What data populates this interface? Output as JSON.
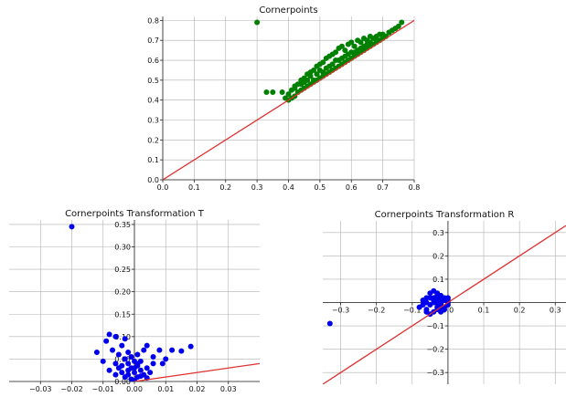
{
  "chart_data": [
    {
      "type": "scatter",
      "title": "Cornerpoints",
      "xlim": [
        0.0,
        0.8
      ],
      "ylim": [
        0.0,
        0.82
      ],
      "xticks": [
        0.0,
        0.1,
        0.2,
        0.3,
        0.4,
        0.5,
        0.6,
        0.7,
        0.8
      ],
      "yticks": [
        0.0,
        0.1,
        0.2,
        0.3,
        0.4,
        0.5,
        0.6,
        0.7,
        0.8
      ],
      "xtick_labels": [
        "0.0",
        "0.1",
        "0.2",
        "0.3",
        "0.4",
        "0.5",
        "0.6",
        "0.7",
        "0.8"
      ],
      "ytick_labels": [
        "0.0",
        "0.1",
        "0.2",
        "0.3",
        "0.4",
        "0.5",
        "0.6",
        "0.7",
        "0.8"
      ],
      "grid": true,
      "point_color": "#008000",
      "line_color": "#e03030",
      "reference_line": [
        [
          0.0,
          0.0
        ],
        [
          0.8,
          0.8
        ]
      ],
      "series": [
        {
          "x": [
            0.3,
            0.33,
            0.35,
            0.38,
            0.39,
            0.4,
            0.4,
            0.41,
            0.41,
            0.42,
            0.42,
            0.43,
            0.43,
            0.44,
            0.44,
            0.45,
            0.45,
            0.46,
            0.46,
            0.47,
            0.47,
            0.48,
            0.48,
            0.49,
            0.49,
            0.5,
            0.5,
            0.51,
            0.51,
            0.52,
            0.52,
            0.53,
            0.53,
            0.54,
            0.54,
            0.55,
            0.55,
            0.56,
            0.56,
            0.57,
            0.57,
            0.58,
            0.58,
            0.59,
            0.59,
            0.6,
            0.6,
            0.61,
            0.61,
            0.62,
            0.62,
            0.63,
            0.63,
            0.64,
            0.64,
            0.65,
            0.65,
            0.66,
            0.66,
            0.67,
            0.67,
            0.68,
            0.68,
            0.69,
            0.69,
            0.7,
            0.7,
            0.71,
            0.72,
            0.73,
            0.74,
            0.75,
            0.76,
            0.45,
            0.47,
            0.5,
            0.52,
            0.55,
            0.58,
            0.62,
            0.65,
            0.68,
            0.7,
            0.72,
            0.48,
            0.53,
            0.57,
            0.6,
            0.63,
            0.66,
            0.42,
            0.44,
            0.46,
            0.49,
            0.51,
            0.54,
            0.56,
            0.59,
            0.61,
            0.64
          ],
          "y": [
            0.79,
            0.44,
            0.44,
            0.44,
            0.41,
            0.4,
            0.43,
            0.41,
            0.45,
            0.42,
            0.46,
            0.44,
            0.48,
            0.45,
            0.5,
            0.46,
            0.51,
            0.47,
            0.53,
            0.48,
            0.54,
            0.49,
            0.55,
            0.5,
            0.57,
            0.51,
            0.58,
            0.52,
            0.59,
            0.53,
            0.61,
            0.54,
            0.62,
            0.55,
            0.63,
            0.56,
            0.64,
            0.57,
            0.66,
            0.58,
            0.67,
            0.59,
            0.65,
            0.6,
            0.68,
            0.61,
            0.69,
            0.62,
            0.67,
            0.63,
            0.7,
            0.64,
            0.69,
            0.65,
            0.71,
            0.66,
            0.7,
            0.67,
            0.72,
            0.68,
            0.71,
            0.69,
            0.72,
            0.7,
            0.73,
            0.71,
            0.73,
            0.72,
            0.74,
            0.75,
            0.76,
            0.77,
            0.79,
            0.49,
            0.52,
            0.55,
            0.56,
            0.6,
            0.62,
            0.65,
            0.68,
            0.7,
            0.72,
            0.74,
            0.5,
            0.57,
            0.61,
            0.64,
            0.66,
            0.69,
            0.47,
            0.48,
            0.5,
            0.53,
            0.54,
            0.58,
            0.6,
            0.63,
            0.64,
            0.67
          ]
        }
      ]
    },
    {
      "type": "scatter",
      "title": "Cornerpoints Transformation T",
      "xlim": [
        -0.04,
        0.04
      ],
      "ylim": [
        0.0,
        0.36
      ],
      "xticks": [
        -0.03,
        -0.02,
        -0.01,
        0.0,
        0.01,
        0.02,
        0.03
      ],
      "yticks": [
        0.0,
        0.05,
        0.1,
        0.15,
        0.2,
        0.25,
        0.3,
        0.35
      ],
      "xtick_labels": [
        "−0.03",
        "−0.02",
        "−0.01",
        "0.00",
        "0.01",
        "0.02",
        "0.03"
      ],
      "ytick_labels": [
        "0.00",
        "0.05",
        "0.10",
        "0.15",
        "0.20",
        "0.25",
        "0.30",
        "0.35"
      ],
      "grid": true,
      "point_color": "#0000ee",
      "line_color": "#e03030",
      "reference_line": [
        [
          0.0,
          0.0
        ],
        [
          0.04,
          0.04
        ]
      ],
      "series": [
        {
          "x": [
            -0.02,
            -0.012,
            -0.01,
            -0.009,
            -0.008,
            -0.007,
            -0.006,
            -0.006,
            -0.005,
            -0.005,
            -0.004,
            -0.004,
            -0.003,
            -0.003,
            -0.003,
            -0.002,
            -0.002,
            -0.002,
            -0.001,
            -0.001,
            -0.001,
            0.0,
            0.0,
            0.0,
            0.001,
            0.001,
            0.001,
            0.002,
            0.002,
            0.003,
            0.003,
            0.004,
            0.004,
            0.005,
            0.006,
            0.008,
            0.01,
            0.012,
            0.015,
            0.018,
            -0.008,
            -0.004,
            0.0,
            0.002,
            0.006,
            -0.006,
            -0.002,
            0.001,
            0.004,
            0.009
          ],
          "y": [
            0.345,
            0.065,
            0.045,
            0.09,
            0.105,
            0.07,
            0.04,
            0.1,
            0.06,
            0.03,
            0.08,
            0.02,
            0.05,
            0.01,
            0.095,
            0.04,
            0.015,
            0.065,
            0.03,
            0.005,
            0.055,
            0.02,
            0.045,
            0.002,
            0.035,
            0.01,
            0.06,
            0.025,
            0.045,
            0.015,
            0.07,
            0.03,
            0.08,
            0.02,
            0.04,
            0.07,
            0.05,
            0.07,
            0.068,
            0.078,
            0.025,
            0.035,
            0.03,
            0.012,
            0.055,
            0.015,
            0.025,
            0.04,
            0.008,
            0.04
          ]
        }
      ]
    },
    {
      "type": "scatter",
      "title": "Cornerpoints Transformation R",
      "xlim": [
        -0.35,
        0.33
      ],
      "ylim": [
        -0.35,
        0.35
      ],
      "xticks": [
        -0.3,
        -0.2,
        -0.1,
        0.0,
        0.1,
        0.2,
        0.3
      ],
      "yticks": [
        -0.3,
        -0.2,
        -0.1,
        0.0,
        0.1,
        0.2,
        0.3
      ],
      "xtick_labels": [
        "−0.3",
        "−0.2",
        "−0.1",
        "0.0",
        "0.1",
        "0.2",
        "0.3"
      ],
      "ytick_labels": [
        "−0.3",
        "−0.2",
        "−0.1",
        "0.0",
        "0.1",
        "0.2",
        "0.3"
      ],
      "grid": true,
      "point_color": "#0000ee",
      "line_color": "#e03030",
      "reference_line": [
        [
          -0.35,
          -0.35
        ],
        [
          0.33,
          0.33
        ]
      ],
      "series": [
        {
          "x": [
            -0.33,
            -0.08,
            -0.07,
            -0.06,
            -0.06,
            -0.05,
            -0.05,
            -0.04,
            -0.04,
            -0.04,
            -0.03,
            -0.03,
            -0.03,
            -0.02,
            -0.02,
            -0.02,
            -0.01,
            -0.01,
            -0.01,
            0.0,
            0.0,
            0.0,
            -0.05,
            -0.06,
            -0.04,
            -0.03,
            -0.02,
            -0.01,
            -0.07,
            -0.05,
            -0.03,
            -0.02,
            -0.04,
            -0.06,
            -0.01,
            0.0,
            -0.02,
            -0.03
          ],
          "y": [
            -0.09,
            -0.02,
            0.01,
            -0.03,
            0.02,
            0.04,
            -0.01,
            0.05,
            0.0,
            -0.04,
            0.03,
            -0.02,
            0.01,
            0.02,
            -0.01,
            0.0,
            0.01,
            -0.02,
            0.02,
            0.0,
            0.01,
            -0.01,
            -0.05,
            -0.04,
            0.02,
            -0.03,
            0.03,
            -0.03,
            -0.01,
            0.02,
            0.04,
            -0.04,
            0.01,
            0.0,
            0.01,
            0.02,
            -0.02,
            0.0
          ]
        }
      ]
    }
  ]
}
